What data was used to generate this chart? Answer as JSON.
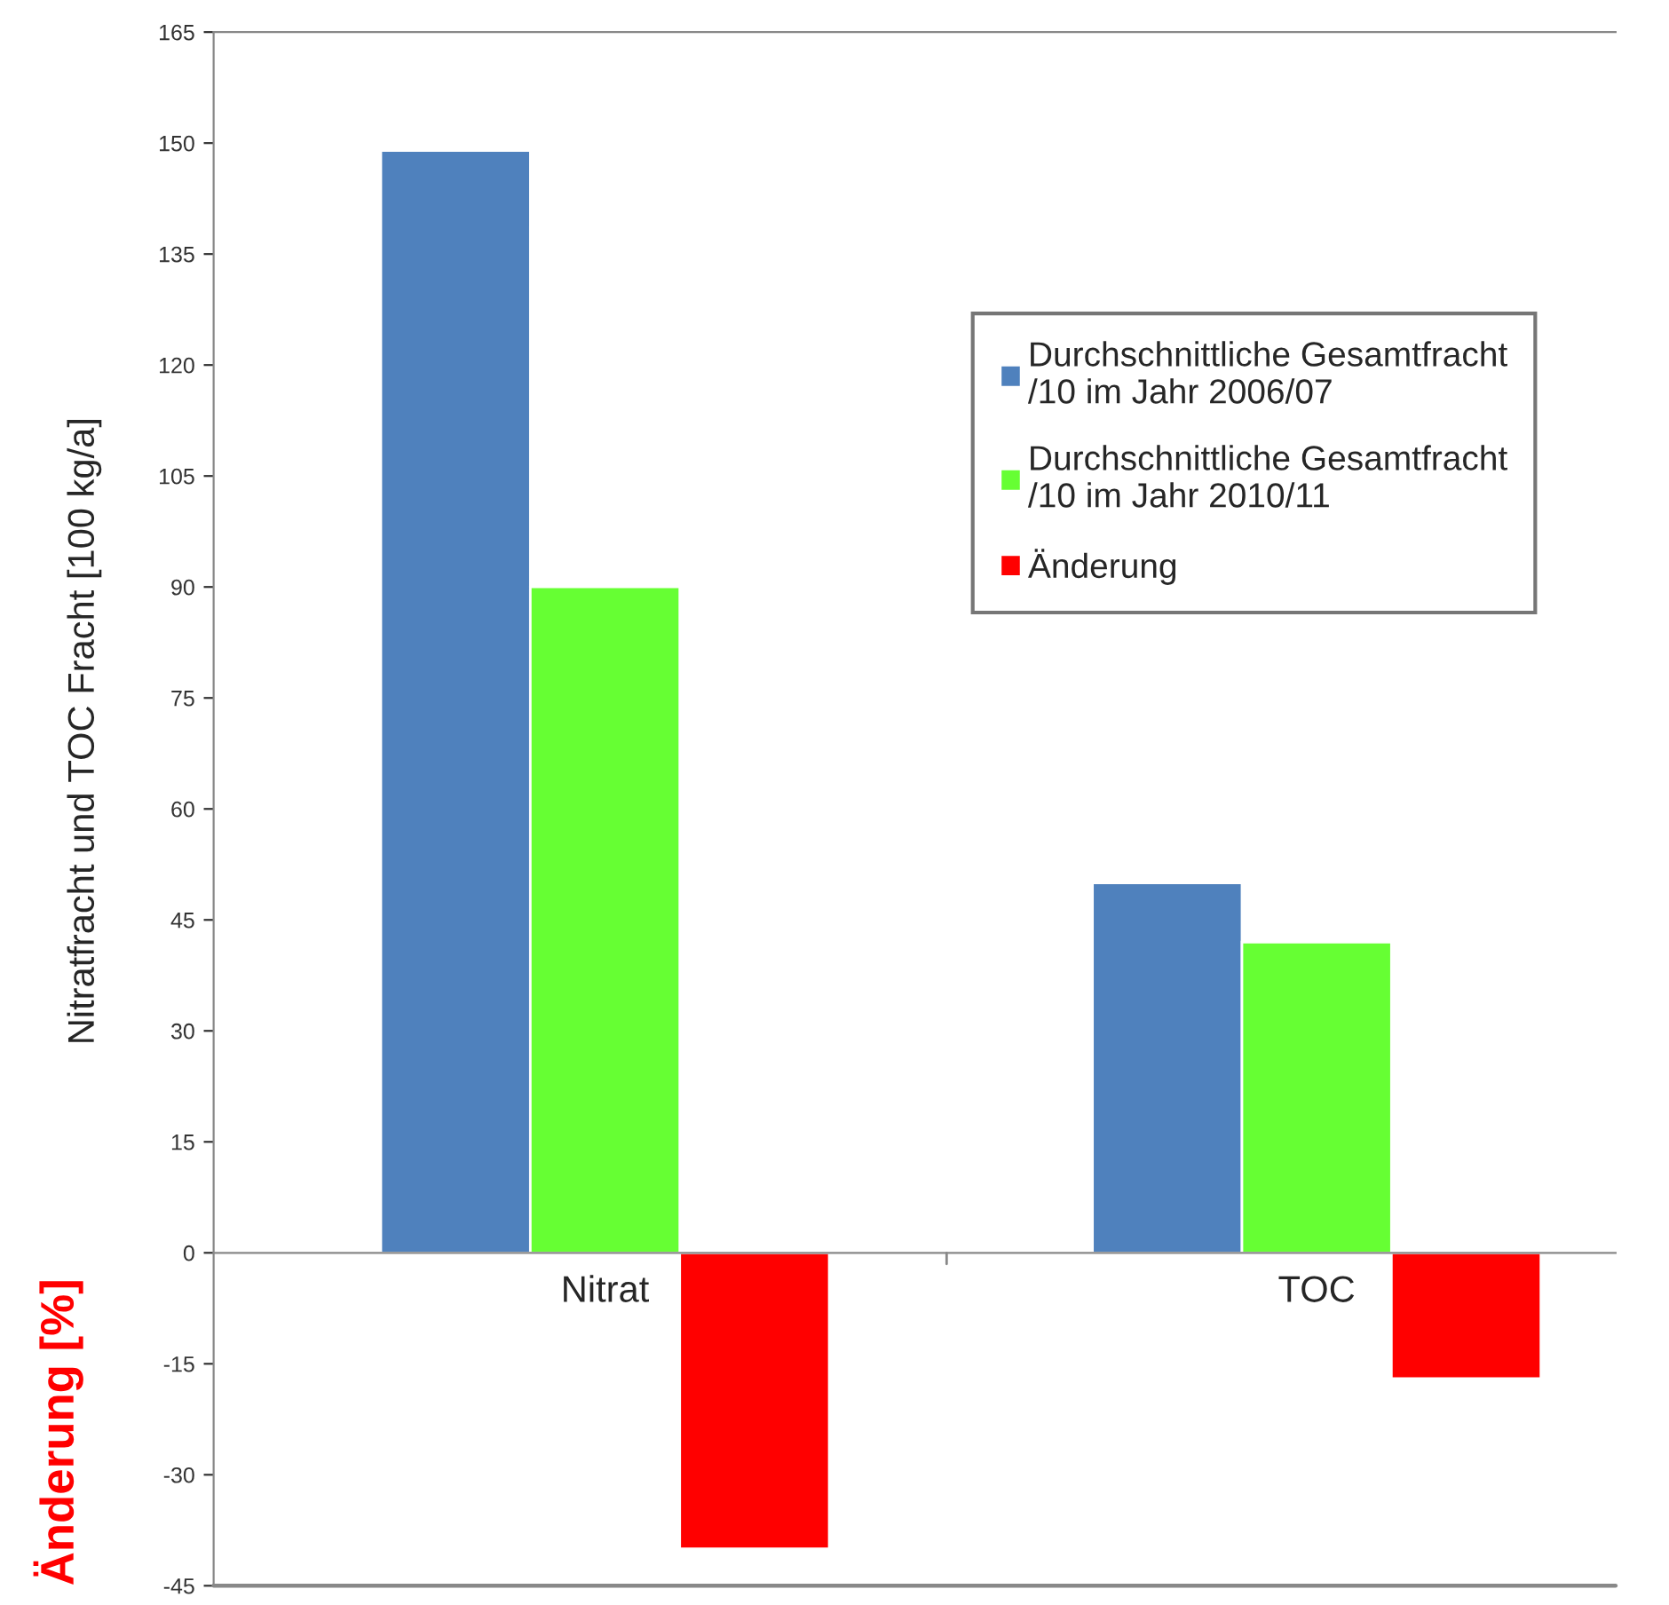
{
  "chart_data": {
    "type": "bar",
    "ylabel": "Nitratfracht und TOC Fracht [100 kg/a]",
    "annotations": [
      "Änderung [%]"
    ],
    "categories": [
      "Nitrat",
      "TOC"
    ],
    "series": [
      {
        "name": "Durchschnittliche Gesamtfracht\n/10 im Jahr 2006/07",
        "color": "#4f81bd",
        "values": [
          149,
          50
        ]
      },
      {
        "name": "Durchschnittliche Gesamtfracht\n/10 im Jahr 2010/11",
        "color": "#66ff33",
        "values": [
          90,
          42
        ]
      },
      {
        "name": "Änderung",
        "color": "#ff0000",
        "values": [
          -40,
          -17
        ]
      }
    ],
    "ylim": [
      -45,
      165
    ],
    "yticks": [
      -45,
      -30,
      -15,
      0,
      15,
      30,
      45,
      60,
      75,
      90,
      105,
      120,
      135,
      150,
      165
    ],
    "grid": false,
    "legend": "top right"
  }
}
